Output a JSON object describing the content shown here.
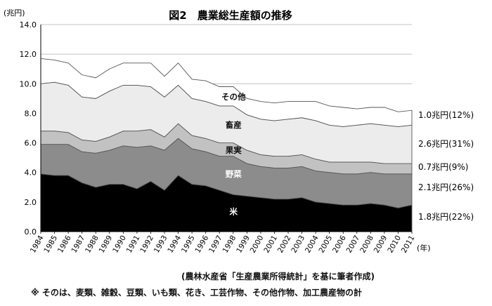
{
  "chart_data": {
    "type": "area",
    "title": "図2　農業総生産額の推移",
    "ylabel": "(兆円)",
    "xlabel": "(年)",
    "ylim": [
      0,
      14
    ],
    "yticks": [
      "0.0",
      "2.0",
      "4.0",
      "6.0",
      "8.0",
      "10.0",
      "12.0",
      "14.0"
    ],
    "grid": "horizontal",
    "stacked": true,
    "x": [
      1984,
      1985,
      1986,
      1987,
      1988,
      1989,
      1990,
      1991,
      1992,
      1993,
      1994,
      1995,
      1996,
      1997,
      1998,
      1999,
      2000,
      2001,
      2002,
      2003,
      2004,
      2005,
      2006,
      2007,
      2008,
      2009,
      2010,
      2011
    ],
    "series": [
      {
        "name": "米",
        "color": "#000000",
        "label_color": "#ffffff",
        "values": [
          3.9,
          3.8,
          3.8,
          3.3,
          3.0,
          3.2,
          3.2,
          2.9,
          3.4,
          2.8,
          3.8,
          3.2,
          3.1,
          2.8,
          2.5,
          2.4,
          2.3,
          2.2,
          2.2,
          2.3,
          2.0,
          1.9,
          1.8,
          1.8,
          1.9,
          1.8,
          1.6,
          1.8
        ]
      },
      {
        "name": "野菜",
        "color": "#8c8c8c",
        "label_color": "#ffffff",
        "values": [
          2.0,
          2.1,
          2.1,
          2.1,
          2.3,
          2.3,
          2.6,
          2.8,
          2.4,
          2.7,
          2.5,
          2.4,
          2.3,
          2.3,
          2.6,
          2.2,
          2.1,
          2.1,
          2.1,
          2.1,
          2.1,
          2.1,
          2.1,
          2.1,
          2.1,
          2.1,
          2.3,
          2.1
        ]
      },
      {
        "name": "果実",
        "color": "#c2c2c2",
        "label_color": "#111111",
        "values": [
          0.9,
          0.9,
          0.8,
          0.8,
          0.8,
          0.9,
          1.0,
          1.1,
          1.1,
          0.9,
          1.0,
          0.9,
          0.9,
          0.9,
          0.9,
          0.9,
          0.8,
          0.8,
          0.8,
          0.8,
          0.8,
          0.7,
          0.8,
          0.8,
          0.7,
          0.7,
          0.7,
          0.7
        ]
      },
      {
        "name": "畜産",
        "color": "#ececec",
        "label_color": "#111111",
        "values": [
          3.2,
          3.3,
          3.2,
          2.9,
          2.9,
          3.1,
          3.1,
          3.1,
          2.9,
          2.7,
          2.6,
          2.5,
          2.5,
          2.5,
          2.5,
          2.4,
          2.4,
          2.4,
          2.5,
          2.5,
          2.6,
          2.5,
          2.4,
          2.5,
          2.6,
          2.6,
          2.5,
          2.6
        ]
      },
      {
        "name": "その他",
        "color": "#ffffff",
        "label_color": "#111111",
        "values": [
          1.7,
          1.5,
          1.5,
          1.5,
          1.4,
          1.5,
          1.5,
          1.5,
          1.6,
          1.4,
          1.5,
          1.3,
          1.4,
          1.3,
          1.3,
          1.1,
          1.2,
          1.2,
          1.2,
          1.1,
          1.3,
          1.3,
          1.3,
          1.1,
          1.1,
          1.2,
          1.0,
          1.0
        ]
      }
    ],
    "right_labels": [
      "1.0兆円(12%)",
      "2.6兆円(31%)",
      "0.7兆円(9%)",
      "2.1兆円(26%)",
      "1.8兆円(22%)"
    ],
    "source": "(農林水産省「生産農業所得統計」を基に筆者作成)",
    "note": "※ そのは、麦類、雑穀、豆類、いも類、花き、工芸作物、その他作物、加工農産物の計"
  }
}
